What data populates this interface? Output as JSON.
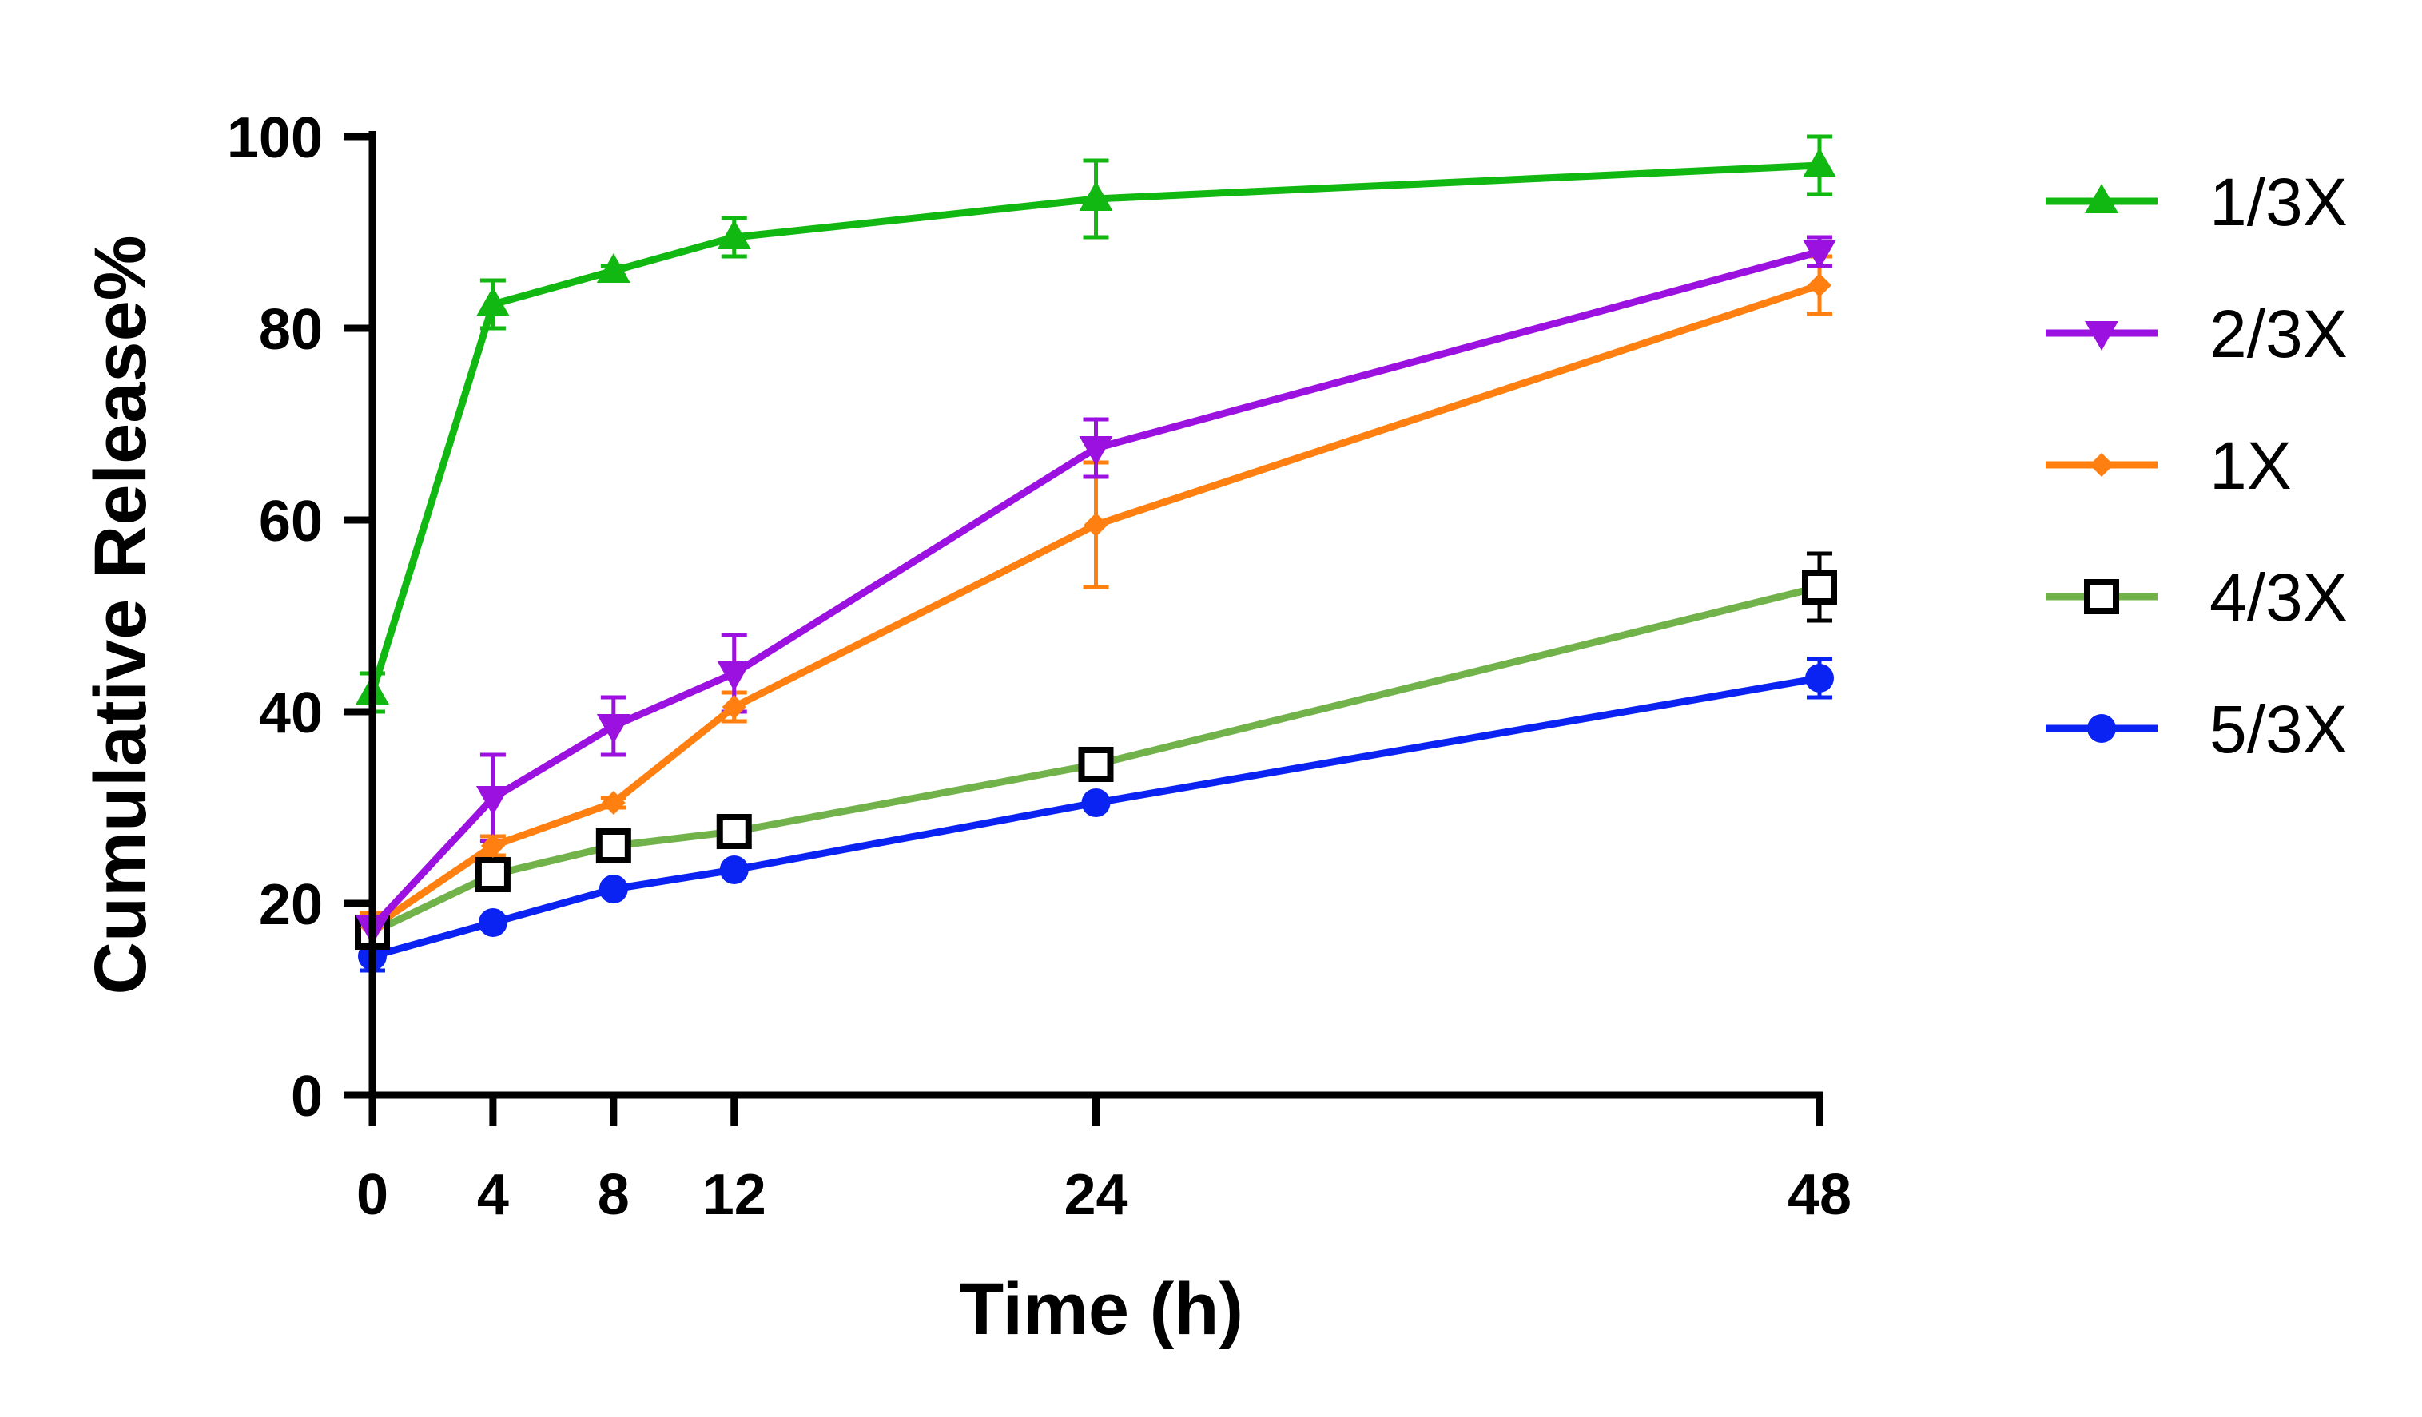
{
  "chart_data": {
    "type": "line",
    "title": "",
    "xlabel": "Time (h)",
    "ylabel": "Cumulative Release%",
    "x": [
      0,
      4,
      8,
      12,
      24,
      48
    ],
    "x_ticks": [
      0,
      4,
      8,
      12,
      24,
      48
    ],
    "y_ticks": [
      0,
      20,
      40,
      60,
      80,
      100
    ],
    "xlim": [
      0,
      48
    ],
    "ylim": [
      0,
      100
    ],
    "grid": false,
    "legend_position": "right",
    "series": [
      {
        "name": "1/3X",
        "color": "#11b811",
        "marker": "triangle-up",
        "values": [
          42,
          82.5,
          86,
          89.5,
          93.5,
          97
        ],
        "errors": [
          2,
          2.5,
          0.5,
          2,
          4,
          3
        ]
      },
      {
        "name": "2/3X",
        "color": "#9b12e0",
        "marker": "triangle-down",
        "values": [
          17.5,
          31,
          38.5,
          44,
          67.5,
          88
        ],
        "errors": [
          1,
          4.5,
          3,
          4,
          3,
          1.5
        ]
      },
      {
        "name": "1X",
        "color": "#ff8010",
        "marker": "diamond",
        "values": [
          17.5,
          26,
          30.5,
          40.5,
          59.5,
          84.5
        ],
        "errors": [
          1.5,
          1,
          0.5,
          1.5,
          6.5,
          3
        ]
      },
      {
        "name": "4/3X",
        "color": "#72b24a",
        "marker": "open-square",
        "marker_color": "#000000",
        "values": [
          17,
          23,
          26,
          27.5,
          34.5,
          53
        ],
        "errors": [
          0.5,
          0.5,
          0.5,
          0.5,
          0.5,
          3.5
        ]
      },
      {
        "name": "5/3X",
        "color": "#0a22f2",
        "marker": "circle",
        "values": [
          14.5,
          18,
          21.5,
          23.5,
          30.5,
          43.5
        ],
        "errors": [
          1.5,
          0.5,
          0.5,
          0.5,
          0.5,
          2
        ]
      }
    ]
  }
}
